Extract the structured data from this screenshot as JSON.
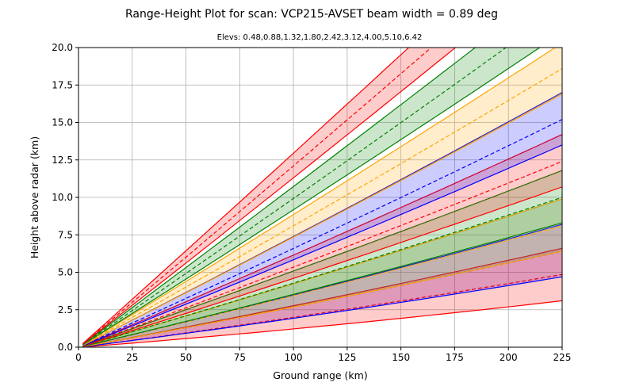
{
  "chart_data": {
    "type": "line",
    "title": "Range-Height Plot for scan: VCP215-AVSET  beam width = 0.89 deg",
    "subtitle": "Elevs: 0.48,0.88,1.32,1.80,2.42,3.12,4.00,5.10,6.42",
    "xlabel": "Ground range (km)",
    "ylabel": "Height above radar (km)",
    "xlim": [
      0,
      225
    ],
    "ylim": [
      0,
      20
    ],
    "xticks": [
      "0",
      "25",
      "50",
      "75",
      "100",
      "125",
      "150",
      "175",
      "200",
      "225"
    ],
    "yticks": [
      "0.0",
      "2.5",
      "5.0",
      "7.5",
      "10.0",
      "12.5",
      "15.0",
      "17.5",
      "20.0"
    ],
    "grid": true,
    "beam_width_deg": 0.89,
    "elevations_deg": [
      0.48,
      0.88,
      1.32,
      1.8,
      2.42,
      3.12,
      4.0,
      5.1,
      6.42
    ],
    "series": [
      {
        "elevation": 0.48,
        "color": "#ff0000",
        "fill": "rgba(255,0,0,0.2)",
        "x": [
          2,
          225
        ],
        "center": [
          0.02,
          4.85
        ],
        "lower": [
          0.01,
          3.1
        ],
        "upper": [
          0.03,
          6.6
        ]
      },
      {
        "elevation": 0.88,
        "color": "#0000ff",
        "fill": "rgba(128,0,128,0.25)",
        "x": [
          2,
          225
        ],
        "center": [
          0.03,
          6.4
        ],
        "lower": [
          0.02,
          4.7
        ],
        "upper": [
          0.05,
          8.2
        ]
      },
      {
        "elevation": 1.32,
        "color": "#ffa500",
        "fill": "rgba(107,142,35,0.25)",
        "x": [
          2,
          225
        ],
        "center": [
          0.05,
          8.1
        ],
        "lower": [
          0.03,
          6.4
        ],
        "upper": [
          0.07,
          9.9
        ]
      },
      {
        "elevation": 1.8,
        "color": "#008000",
        "fill": "rgba(0,128,0,0.2)",
        "x": [
          2,
          225
        ],
        "center": [
          0.06,
          10.0
        ],
        "lower": [
          0.05,
          8.3
        ],
        "upper": [
          0.08,
          11.8
        ]
      },
      {
        "elevation": 2.42,
        "color": "#ff0000",
        "fill": "rgba(255,0,0,0.2)",
        "x": [
          2,
          225
        ],
        "center": [
          0.08,
          12.4
        ],
        "lower": [
          0.07,
          10.7
        ],
        "upper": [
          0.1,
          14.2
        ]
      },
      {
        "elevation": 3.12,
        "color": "#0000ff",
        "fill": "rgba(0,0,255,0.2)",
        "x": [
          2,
          225
        ],
        "center": [
          0.11,
          15.2
        ],
        "lower": [
          0.09,
          13.5
        ],
        "upper": [
          0.12,
          17.0
        ]
      },
      {
        "elevation": 4.0,
        "color": "#ffa500",
        "fill": "rgba(255,165,0,0.2)",
        "x": [
          2,
          225
        ],
        "center": [
          0.14,
          18.6
        ],
        "lower": [
          0.12,
          16.9
        ],
        "upper": [
          0.15,
          20.3
        ]
      },
      {
        "elevation": 5.1,
        "color": "#008000",
        "fill": "rgba(0,128,0,0.2)",
        "x": [
          2,
          225
        ],
        "center": [
          0.18,
          22.7
        ],
        "lower": [
          0.16,
          21.0
        ],
        "upper": [
          0.19,
          24.5
        ]
      },
      {
        "elevation": 6.42,
        "color": "#ff0000",
        "fill": "rgba(255,0,0,0.2)",
        "x": [
          2,
          225
        ],
        "center": [
          0.22,
          27.6
        ],
        "lower": [
          0.21,
          25.8
        ],
        "upper": [
          0.24,
          29.5
        ]
      }
    ]
  }
}
